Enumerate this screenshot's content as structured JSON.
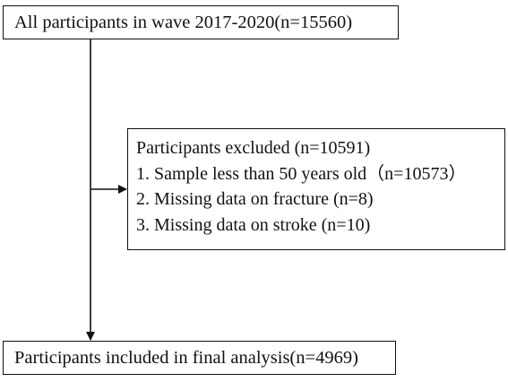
{
  "flowchart": {
    "top_box": {
      "text": "All participants in wave 2017-2020(n=15560)"
    },
    "excluded_box": {
      "title": "Participants excluded (n=10591)",
      "items": [
        "1. Sample less than 50 years old（n=10573）",
        "2. Missing data on fracture (n=8)",
        "3. Missing data on stroke (n=10)"
      ]
    },
    "final_box": {
      "text": "Participants included in final analysis(n=4969)"
    }
  },
  "colors": {
    "line": "#111111",
    "background": "#ffffff",
    "text": "#111111"
  }
}
